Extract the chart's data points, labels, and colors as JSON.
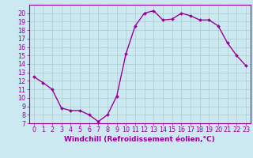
{
  "x": [
    0,
    1,
    2,
    3,
    4,
    5,
    6,
    7,
    8,
    9,
    10,
    11,
    12,
    13,
    14,
    15,
    16,
    17,
    18,
    19,
    20,
    21,
    22,
    23
  ],
  "y": [
    12.5,
    11.8,
    11.0,
    8.8,
    8.5,
    8.5,
    8.0,
    7.2,
    8.0,
    10.2,
    15.2,
    18.5,
    20.0,
    20.3,
    19.2,
    19.3,
    20.0,
    19.7,
    19.2,
    19.2,
    18.5,
    16.5,
    15.0,
    13.8
  ],
  "line_color": "#990099",
  "marker": "D",
  "marker_size": 2.0,
  "bg_color": "#cce8f0",
  "grid_color": "#aacccc",
  "xlabel": "Windchill (Refroidissement éolien,°C)",
  "xlim": [
    -0.5,
    23.5
  ],
  "ylim": [
    7,
    21
  ],
  "yticks": [
    7,
    8,
    9,
    10,
    11,
    12,
    13,
    14,
    15,
    16,
    17,
    18,
    19,
    20
  ],
  "xticks": [
    0,
    1,
    2,
    3,
    4,
    5,
    6,
    7,
    8,
    9,
    10,
    11,
    12,
    13,
    14,
    15,
    16,
    17,
    18,
    19,
    20,
    21,
    22,
    23
  ],
  "xlabel_fontsize": 6.5,
  "tick_fontsize": 5.8,
  "line_width": 1.0
}
